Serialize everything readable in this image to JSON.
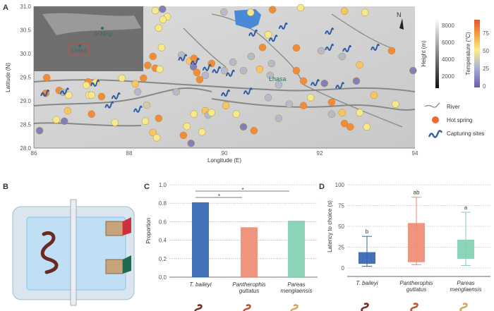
{
  "panels": {
    "a": "A",
    "b": "B",
    "c": "C",
    "d": "D"
  },
  "map": {
    "xlabel": "Longitude (E)",
    "ylabel": "Latitude (N)",
    "xticks": [
      86,
      88,
      90,
      92,
      94
    ],
    "yticks": [
      "28.0",
      "28.5",
      "29.0",
      "29.5",
      "30.0",
      "30.5",
      "31.0"
    ],
    "xlim": [
      86,
      94
    ],
    "ylim": [
      28,
      31
    ],
    "north_label": "N",
    "city_label": "Lhasa",
    "inset": {
      "cities": [
        "Xi Ning",
        "Lhasa"
      ]
    },
    "height_legend": {
      "title": "Height (m)",
      "ticks": [
        "2000",
        "4000",
        "6000",
        "8000"
      ]
    },
    "temp_legend": {
      "title": "Temperature (°C)",
      "ticks": [
        "0",
        "25",
        "50",
        "75"
      ],
      "colors": [
        "#6a5ca8",
        "#a8b4d8",
        "#fbef86",
        "#f39a3f",
        "#e8542a"
      ]
    },
    "legend": {
      "river": "River",
      "hot_spring": "Hot spring",
      "capturing": "Capturing sites"
    },
    "hot_springs": [
      [
        88.55,
        30.91,
        48
      ],
      [
        88.7,
        30.94,
        10
      ],
      [
        88.8,
        30.78,
        48
      ],
      [
        88.71,
        30.72,
        48
      ],
      [
        88.62,
        30.54,
        48
      ],
      [
        88.68,
        30.13,
        48
      ],
      [
        88.5,
        29.94,
        78
      ],
      [
        88.39,
        29.75,
        78
      ],
      [
        88.55,
        29.69,
        78
      ],
      [
        88.64,
        29.67,
        48
      ],
      [
        89.1,
        29.97,
        28
      ],
      [
        89.27,
        29.84,
        62
      ],
      [
        89.36,
        29.9,
        78
      ],
      [
        89.35,
        29.72,
        10
      ],
      [
        89.42,
        29.6,
        78
      ],
      [
        89.48,
        29.45,
        78
      ],
      [
        89.6,
        29.54,
        28
      ],
      [
        86.27,
        29.49,
        78
      ],
      [
        87.14,
        29.4,
        78
      ],
      [
        87.1,
        29.33,
        48
      ],
      [
        87.3,
        29.39,
        48
      ],
      [
        87.85,
        29.48,
        48
      ],
      [
        88.13,
        29.36,
        62
      ],
      [
        88.3,
        29.48,
        78
      ],
      [
        88.18,
        29.19,
        28
      ],
      [
        86.25,
        29.16,
        78
      ],
      [
        86.53,
        29.22,
        78
      ],
      [
        86.61,
        29.18,
        28
      ],
      [
        86.73,
        29.12,
        48
      ],
      [
        87.16,
        29.12,
        48
      ],
      [
        87.21,
        29.12,
        48
      ],
      [
        87.42,
        29.09,
        78
      ],
      [
        88.37,
        28.91,
        35
      ],
      [
        86.71,
        28.79,
        62
      ],
      [
        87.21,
        28.72,
        78
      ],
      [
        86.47,
        28.6,
        48
      ],
      [
        86.64,
        28.57,
        10
      ],
      [
        87.7,
        28.54,
        48
      ],
      [
        88.34,
        28.57,
        48
      ],
      [
        88.62,
        28.63,
        78
      ],
      [
        88.5,
        28.33,
        62
      ],
      [
        86.12,
        28.37,
        10
      ],
      [
        89.21,
        28.46,
        48
      ],
      [
        89.53,
        28.34,
        48
      ],
      [
        89.3,
        28.1,
        10
      ],
      [
        89.6,
        28.79,
        62
      ],
      [
        89.66,
        28.7,
        28
      ],
      [
        89.99,
        30.88,
        28
      ],
      [
        90.55,
        30.87,
        48
      ],
      [
        91.01,
        30.93,
        78
      ],
      [
        91.6,
        30.97,
        48
      ],
      [
        92.52,
        30.9,
        62
      ],
      [
        92.95,
        30.87,
        48
      ],
      [
        90.92,
        30.4,
        48
      ],
      [
        90.8,
        30.13,
        78
      ],
      [
        91.51,
        30.12,
        78
      ],
      [
        92.03,
        30.06,
        28
      ],
      [
        91.51,
        29.64,
        78
      ],
      [
        90.96,
        29.54,
        28
      ],
      [
        91.14,
        29.34,
        28
      ],
      [
        91.66,
        29.42,
        78
      ],
      [
        92.47,
        29.94,
        28
      ],
      [
        92.84,
        29.76,
        62
      ],
      [
        90.99,
        29.79,
        28
      ],
      [
        90.18,
        29.82,
        28
      ],
      [
        90.56,
        29.94,
        28
      ],
      [
        89.73,
        29.79,
        78
      ],
      [
        90.0,
        29.64,
        28
      ],
      [
        90.4,
        29.64,
        28
      ],
      [
        90.74,
        29.67,
        62
      ],
      [
        92.77,
        29.42,
        10
      ],
      [
        92.1,
        29.37,
        10
      ],
      [
        92.25,
        28.97,
        78
      ],
      [
        90.03,
        28.9,
        62
      ],
      [
        90.25,
        28.72,
        48
      ],
      [
        90.92,
        29.07,
        28
      ],
      [
        91.36,
        28.93,
        28
      ],
      [
        91.66,
        28.9,
        78
      ],
      [
        91.81,
        29.07,
        48
      ],
      [
        92.25,
        28.72,
        28
      ],
      [
        92.47,
        28.75,
        62
      ],
      [
        92.84,
        28.75,
        48
      ],
      [
        92.99,
        28.45,
        48
      ],
      [
        92.52,
        28.52,
        78
      ],
      [
        92.64,
        28.45,
        78
      ],
      [
        89.73,
        28.75,
        48
      ],
      [
        90.62,
        28.37,
        78
      ],
      [
        88.58,
        28.22,
        48
      ],
      [
        93.59,
        28.93,
        48
      ],
      [
        93.96,
        29.64,
        10
      ],
      [
        93.51,
        30.06,
        78
      ],
      [
        93.14,
        29.12,
        62
      ],
      [
        91.14,
        28.63,
        28
      ],
      [
        90.4,
        28.45,
        10
      ],
      [
        89.36,
        28.72,
        48
      ],
      [
        89.14,
        28.27,
        78
      ],
      [
        88.99,
        29.19,
        28
      ]
    ],
    "capturing_sites": [
      [
        86.21,
        29.15
      ],
      [
        86.62,
        29.19
      ],
      [
        87.26,
        29.36
      ],
      [
        87.7,
        29.09
      ],
      [
        87.56,
        28.9
      ],
      [
        88.16,
        28.81
      ],
      [
        89.1,
        29.9
      ],
      [
        89.36,
        29.82
      ],
      [
        89.61,
        29.69
      ],
      [
        89.81,
        29.64
      ],
      [
        90.1,
        29.57
      ],
      [
        90.58,
        30.42
      ],
      [
        91.0,
        30.31
      ],
      [
        91.21,
        30.57
      ],
      [
        92.18,
        30.46
      ],
      [
        92.18,
        30.12
      ],
      [
        92.55,
        30.09
      ],
      [
        93.14,
        30.12
      ],
      [
        91.88,
        29.37
      ],
      [
        92.4,
        29.31
      ],
      [
        90.0,
        29.15
      ],
      [
        90.47,
        29.19
      ]
    ]
  },
  "chart_data": [
    {
      "type": "bar",
      "ylabel": "Proportion",
      "ylim": [
        0,
        1
      ],
      "yticks": [
        "0.0",
        "0.2",
        "0.4",
        "0.6",
        "0.8",
        "1.0"
      ],
      "categories": [
        [
          "T. baileyi"
        ],
        [
          "Pantherophis",
          "guttatus"
        ],
        [
          "Pareas",
          "menglaensis"
        ]
      ],
      "values": [
        0.81,
        0.54,
        0.61
      ],
      "colors": [
        "#2f63b0",
        "#ee8a70",
        "#7fd0b0"
      ],
      "annotations": [
        {
          "from": 0,
          "to": 2,
          "label": "*"
        },
        {
          "from": 0,
          "to": 1,
          "label": "*"
        }
      ],
      "grid": "horizontal dotted"
    },
    {
      "type": "box",
      "ylabel": "Latency to choice (s)",
      "ylim": [
        0,
        100
      ],
      "yticks": [
        "0",
        "25",
        "50",
        "75",
        "100"
      ],
      "categories": [
        [
          "T. baileyi"
        ],
        [
          "Pantherophis",
          "guttatus"
        ],
        [
          "Pareas",
          "menglaensis"
        ]
      ],
      "boxes": [
        {
          "min": 2,
          "q1": 5,
          "q3": 19,
          "max": 38,
          "letter": "b"
        },
        {
          "min": 4,
          "q1": 7,
          "q3": 54,
          "max": 85,
          "letter": "ab"
        },
        {
          "min": 3,
          "q1": 11,
          "q3": 34,
          "max": 67,
          "letter": "a"
        }
      ],
      "colors": [
        "#2f63b0",
        "#ee8a70",
        "#7fd0b0"
      ],
      "grid": "horizontal dotted"
    }
  ],
  "snake_colors": [
    "#7a2e22",
    "#c0552f",
    "#d7a858"
  ]
}
